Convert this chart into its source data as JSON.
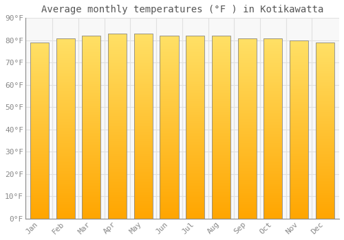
{
  "months": [
    "Jan",
    "Feb",
    "Mar",
    "Apr",
    "May",
    "Jun",
    "Jul",
    "Aug",
    "Sep",
    "Oct",
    "Nov",
    "Dec"
  ],
  "values": [
    79,
    81,
    82,
    83,
    83,
    82,
    82,
    82,
    81,
    81,
    80,
    79
  ],
  "bar_color_bottom": "#FFA500",
  "bar_color_top": "#FFE066",
  "bar_edge_color": "#888888",
  "background_color": "#FFFFFF",
  "plot_bg_color": "#F8F8F8",
  "grid_color": "#E0E0E0",
  "title": "Average monthly temperatures (°F ) in Kotikawatta",
  "title_fontsize": 10,
  "tick_label_fontsize": 8,
  "tick_label_color": "#888888",
  "ylim": [
    0,
    90
  ],
  "yticks": [
    0,
    10,
    20,
    30,
    40,
    50,
    60,
    70,
    80,
    90
  ],
  "ytick_labels": [
    "0°F",
    "10°F",
    "20°F",
    "30°F",
    "40°F",
    "50°F",
    "60°F",
    "70°F",
    "80°F",
    "90°F"
  ]
}
